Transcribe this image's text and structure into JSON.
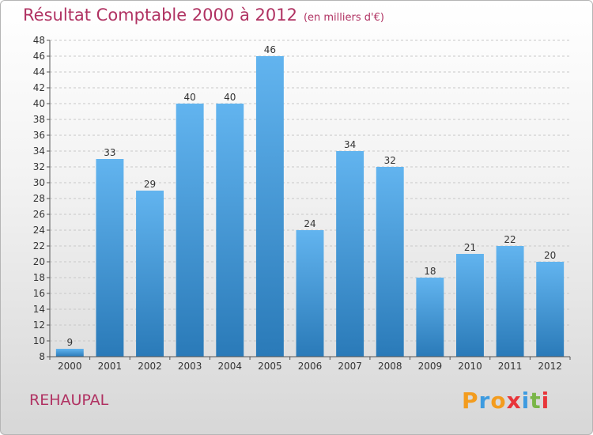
{
  "title": "Résultat Comptable 2000 à 2012",
  "subtitle": "(en milliers d'€)",
  "commune": "REHAUPAL",
  "logo": {
    "letters": [
      "P",
      "r",
      "o",
      "x",
      "i",
      "t",
      "i"
    ],
    "colors": [
      "#f39c1e",
      "#3d9be0",
      "#f39c1e",
      "#e8353a",
      "#3d9be0",
      "#7ab648",
      "#e8353a"
    ]
  },
  "colors": {
    "bar_light": "#62b4ef",
    "bar_dark": "#2a7ab8",
    "title": "#b03262"
  },
  "chart_data": {
    "type": "bar",
    "title": "Résultat Comptable 2000 à 2012",
    "xlabel": "",
    "ylabel": "",
    "ylim": [
      8,
      48
    ],
    "yticks": [
      8,
      10,
      12,
      14,
      16,
      18,
      20,
      22,
      24,
      26,
      28,
      30,
      32,
      34,
      36,
      38,
      40,
      42,
      44,
      46,
      48
    ],
    "categories": [
      "2000",
      "2001",
      "2002",
      "2003",
      "2004",
      "2005",
      "2006",
      "2007",
      "2008",
      "2009",
      "2010",
      "2011",
      "2012"
    ],
    "values": [
      9,
      33,
      29,
      40,
      40,
      46,
      24,
      34,
      32,
      18,
      21,
      22,
      20
    ],
    "grid": true,
    "legend": "none"
  }
}
